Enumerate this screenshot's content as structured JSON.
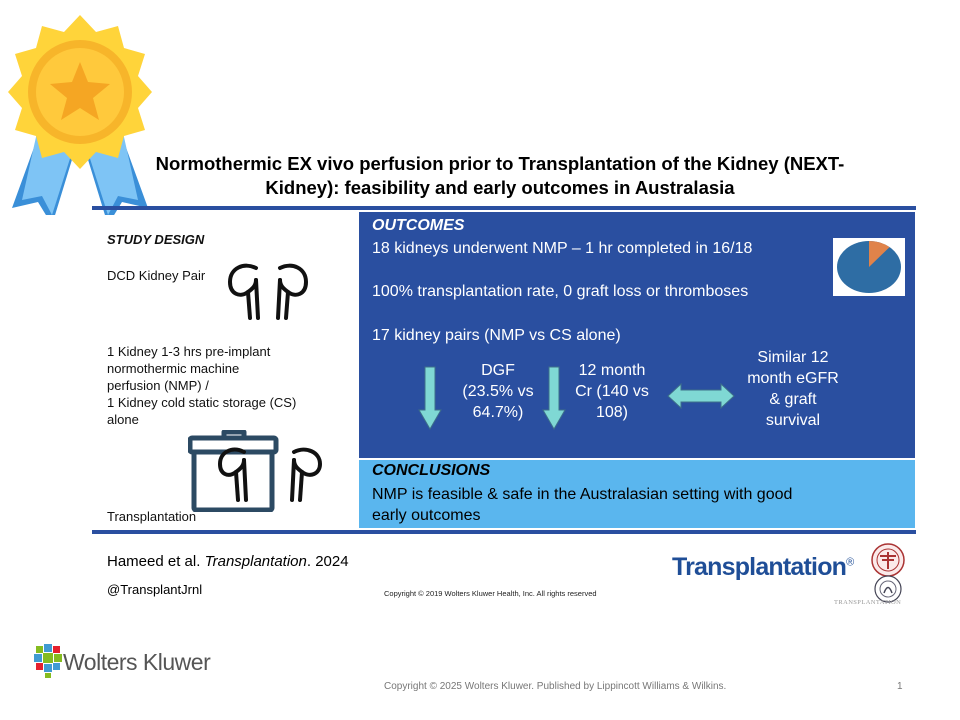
{
  "title": {
    "line1": "Normothermic EX vivo perfusion prior to Transplantation of the Kidney (NEXT-",
    "line2": "Kidney): feasibility and early outcomes in Australasia"
  },
  "study_design": {
    "heading": "STUDY DESIGN",
    "dcd_label": "DCD Kidney Pair",
    "line1": "1 Kidney 1-3 hrs pre-implant",
    "line2": "normothermic machine",
    "line3": "perfusion (NMP)  /",
    "line4": "1 Kidney cold static storage (CS)",
    "line5": "alone",
    "transplant_label": "Transplantation"
  },
  "outcomes": {
    "heading": "OUTCOMES",
    "line1": "18 kidneys underwent NMP – 1 hr completed in 16/18",
    "line2": "100% transplantation rate, 0 graft loss or thromboses",
    "line3": "17 kidney pairs (NMP vs CS alone)",
    "dgf": [
      "DGF",
      "(23.5% vs",
      "64.7%)"
    ],
    "cr": [
      "12 month",
      "Cr (140 vs",
      "108)"
    ],
    "egfr": [
      "Similar 12",
      "month eGFR",
      "& graft",
      "survival"
    ],
    "pie_completed_fraction": 0.889,
    "colors": {
      "panel": "#2a4fa0",
      "pie_main": "#2e6da4",
      "pie_slice": "#e0834a",
      "arrow": "#7fd8d4"
    }
  },
  "conclusions": {
    "heading": "CONCLUSIONS",
    "line1": "NMP is feasible & safe in the Australasian setting with good",
    "line2": "early outcomes",
    "color": "#5ab6ee"
  },
  "citation": {
    "authors": "Hameed et al. ",
    "journal": "Transplantation",
    "year": ". 2024",
    "twitter": "@TransplantJrnl",
    "copyright": "Copyright © 2019  Wolters Kluwer Health, Inc. All rights reserved"
  },
  "journal_logo": {
    "name": "Transplantation",
    "mark": "®",
    "seal_caption": "TRANSPLANTATION"
  },
  "footer": {
    "publisher": "Wolters Kluwer",
    "copyright": "Copyright © 2025 Wolters Kluwer. Published by Lippincott Williams & Wilkins.",
    "page": "1"
  }
}
